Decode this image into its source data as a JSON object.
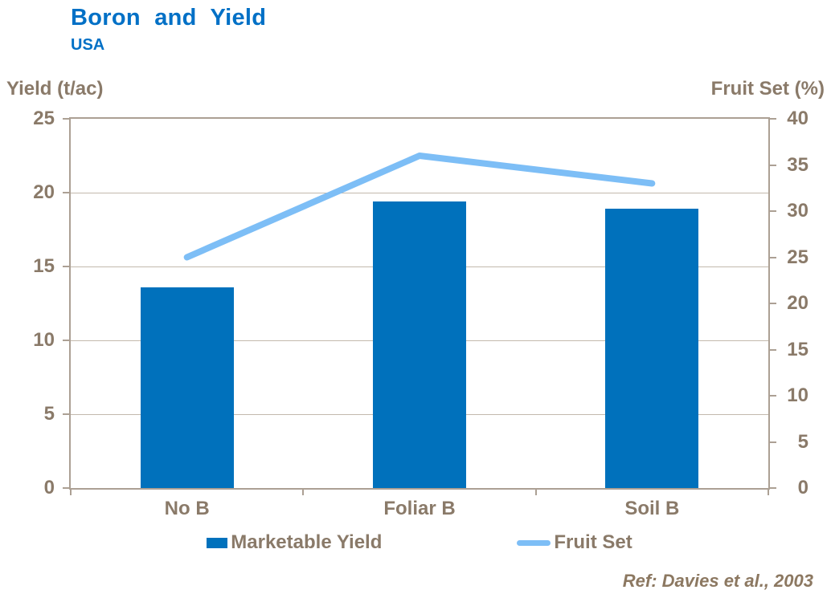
{
  "header": {
    "title": "Boron and Yield",
    "subtitle": "USA"
  },
  "footer": {
    "reference": "Ref: Davies et al., 2003"
  },
  "colors": {
    "title_text": "#0070C6",
    "axis_text": "#8A7A69",
    "reference_text": "#8C7861",
    "gridline": "#C3B9AD",
    "plot_border": "#ACA094",
    "bar_fill": "#0071BC",
    "line_stroke": "#7DBEF6"
  },
  "chart_data": {
    "type": "bar+line combo",
    "title": "Boron and Yield",
    "subtitle": "USA",
    "categories": [
      "No B",
      "Foliar B",
      "Soil B"
    ],
    "series": [
      {
        "name": "Marketable Yield",
        "type": "bar",
        "axis": "left",
        "color": "#0071BC",
        "values": [
          13.6,
          19.4,
          18.9
        ]
      },
      {
        "name": "Fruit Set",
        "type": "line",
        "axis": "right",
        "color": "#7DBEF6",
        "values": [
          25,
          36,
          33
        ]
      }
    ],
    "left_axis": {
      "label": "Yield (t/ac)",
      "min": 0,
      "max": 25,
      "step": 5,
      "ticks": [
        0,
        5,
        10,
        15,
        20,
        25
      ]
    },
    "right_axis": {
      "label": "Fruit Set (%)",
      "min": 0,
      "max": 40,
      "step": 5,
      "ticks": [
        0,
        5,
        10,
        15,
        20,
        25,
        30,
        35,
        40
      ]
    },
    "grid": true,
    "legend_position": "bottom",
    "annotation": "Ref: Davies et al., 2003"
  }
}
